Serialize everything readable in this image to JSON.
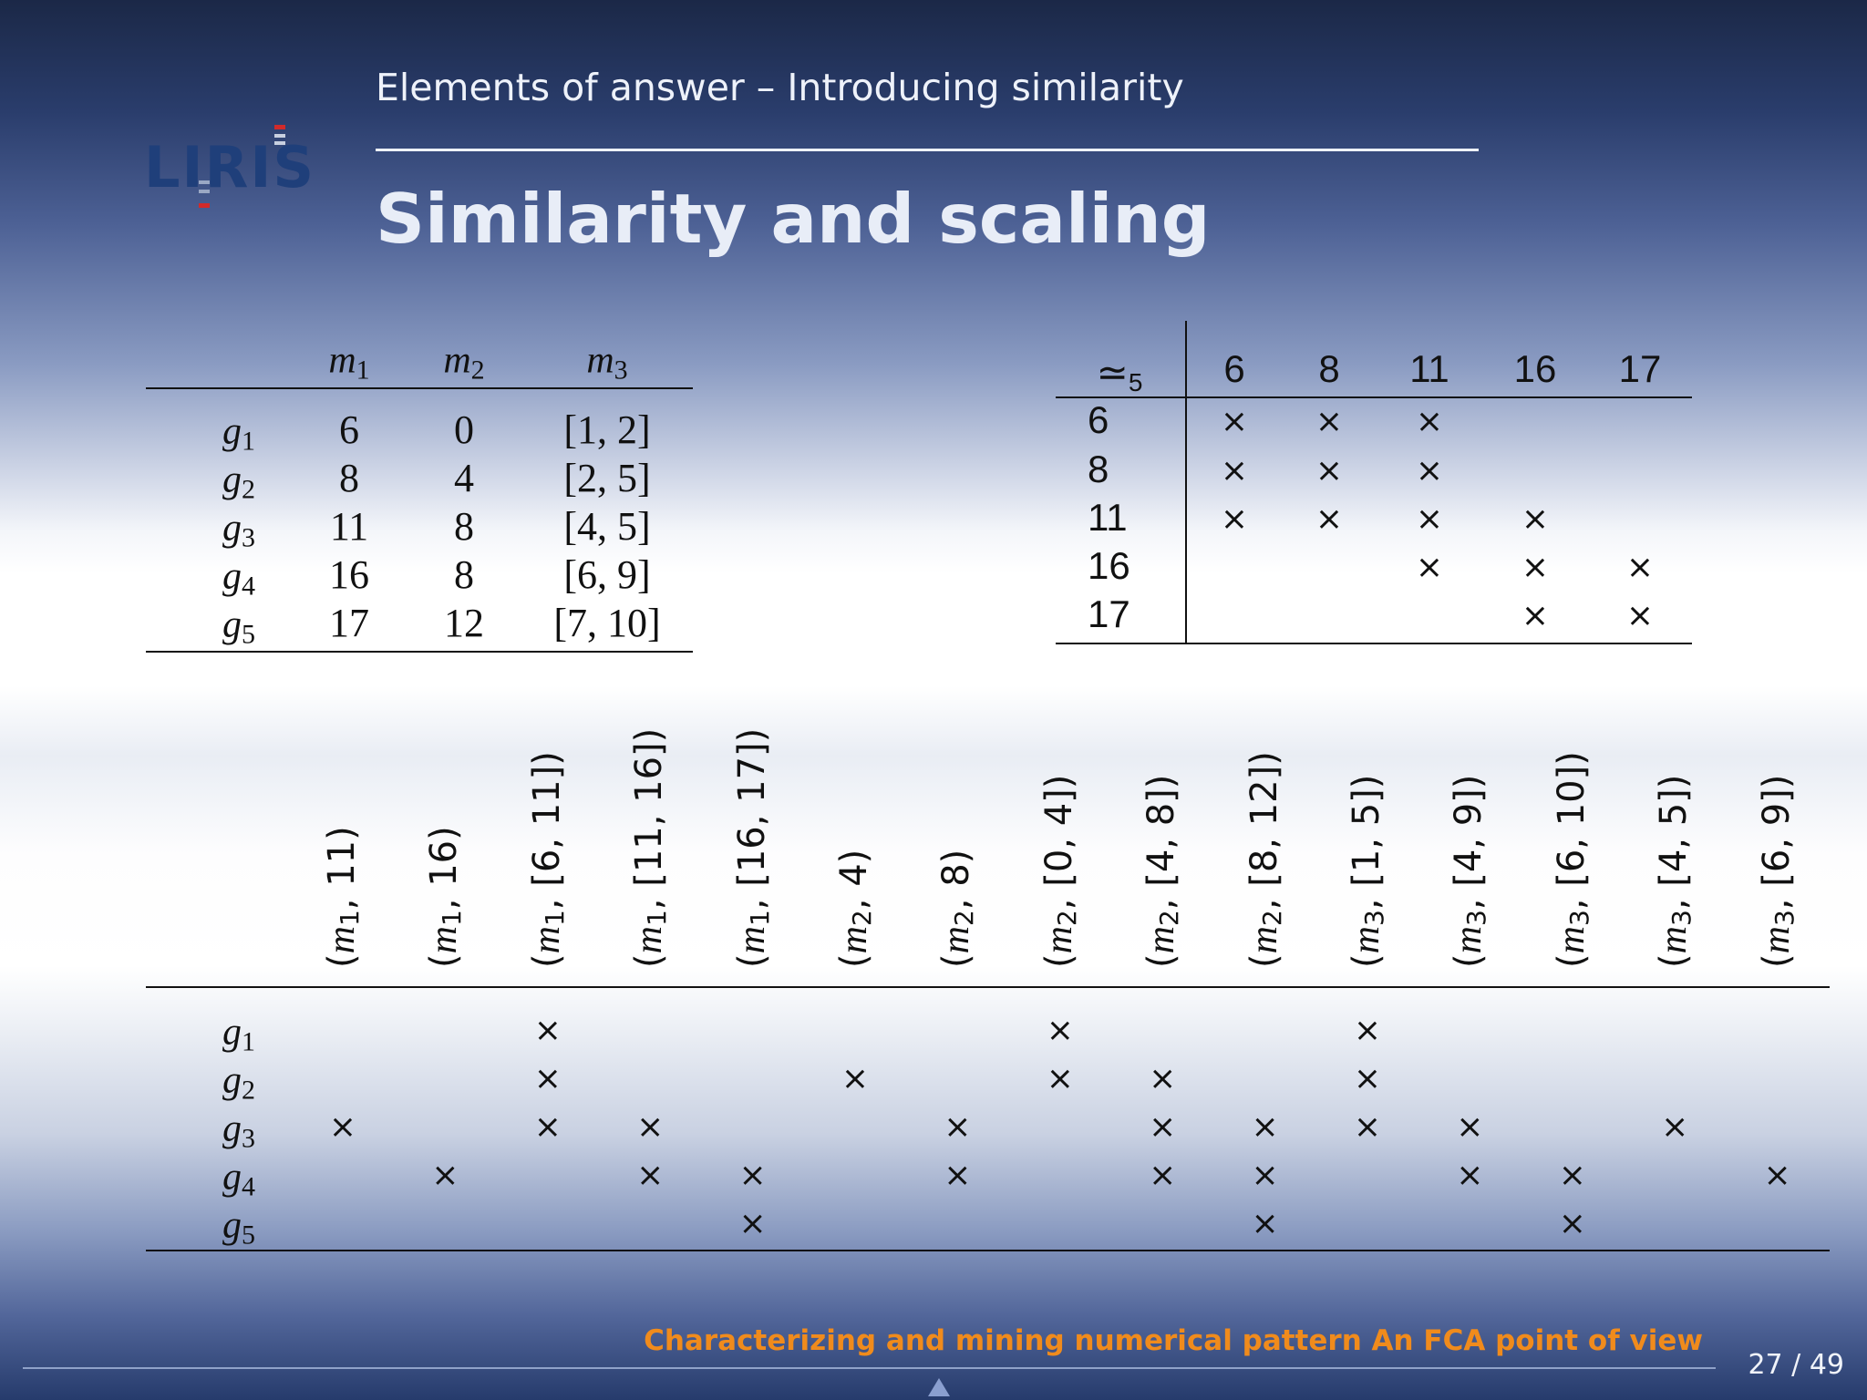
{
  "header": {
    "section_title": "Elements of answer – Introducing similarity",
    "frame_title": "Similarity and scaling",
    "logo_alt": "LIRIS"
  },
  "data_table": {
    "columns": [
      "m1",
      "m2",
      "m3"
    ],
    "rows": [
      {
        "object": "g1",
        "m1": "6",
        "m2": "0",
        "m3": "[1, 2]"
      },
      {
        "object": "g2",
        "m1": "8",
        "m2": "4",
        "m3": "[2, 5]"
      },
      {
        "object": "g3",
        "m1": "11",
        "m2": "8",
        "m3": "[4, 5]"
      },
      {
        "object": "g4",
        "m1": "16",
        "m2": "8",
        "m3": "[6, 9]"
      },
      {
        "object": "g5",
        "m1": "17",
        "m2": "12",
        "m3": "[7, 10]"
      }
    ]
  },
  "similarity_table": {
    "corner": "≃5",
    "columns": [
      "6",
      "8",
      "11",
      "16",
      "17"
    ],
    "rows": [
      {
        "label": "6",
        "marks": [
          true,
          true,
          true,
          false,
          false
        ]
      },
      {
        "label": "8",
        "marks": [
          true,
          true,
          true,
          false,
          false
        ]
      },
      {
        "label": "11",
        "marks": [
          true,
          true,
          true,
          true,
          false
        ]
      },
      {
        "label": "16",
        "marks": [
          false,
          false,
          true,
          true,
          true
        ]
      },
      {
        "label": "17",
        "marks": [
          false,
          false,
          false,
          true,
          true
        ]
      }
    ]
  },
  "scaled_context": {
    "columns": [
      "(m1, 11)",
      "(m1, 16)",
      "(m1, [6, 11])",
      "(m1, [11, 16])",
      "(m1, [16, 17])",
      "(m2, 4)",
      "(m2, 8)",
      "(m2, [0, 4])",
      "(m2, [4, 8])",
      "(m2, [8, 12])",
      "(m3, [1, 5])",
      "(m3, [4, 9])",
      "(m3, [6, 10])",
      "(m3, [4, 5])",
      "(m3, [6, 9])"
    ],
    "rows": [
      {
        "object": "g1",
        "marks": [
          0,
          0,
          1,
          0,
          0,
          0,
          0,
          1,
          0,
          0,
          1,
          0,
          0,
          0,
          0
        ]
      },
      {
        "object": "g2",
        "marks": [
          0,
          0,
          1,
          0,
          0,
          1,
          0,
          1,
          1,
          0,
          1,
          0,
          0,
          0,
          0
        ]
      },
      {
        "object": "g3",
        "marks": [
          1,
          0,
          1,
          1,
          0,
          0,
          1,
          0,
          1,
          1,
          1,
          1,
          0,
          1,
          0
        ]
      },
      {
        "object": "g4",
        "marks": [
          0,
          1,
          0,
          1,
          1,
          0,
          1,
          0,
          1,
          1,
          0,
          1,
          1,
          0,
          1
        ]
      },
      {
        "object": "g5",
        "marks": [
          0,
          0,
          0,
          0,
          1,
          0,
          0,
          0,
          0,
          1,
          0,
          0,
          1,
          0,
          0
        ]
      }
    ],
    "mark_symbol": "×"
  },
  "footer": {
    "presentation_title": "Characterizing and mining numerical pattern An FCA point of view",
    "page_number": "27 / 49"
  }
}
